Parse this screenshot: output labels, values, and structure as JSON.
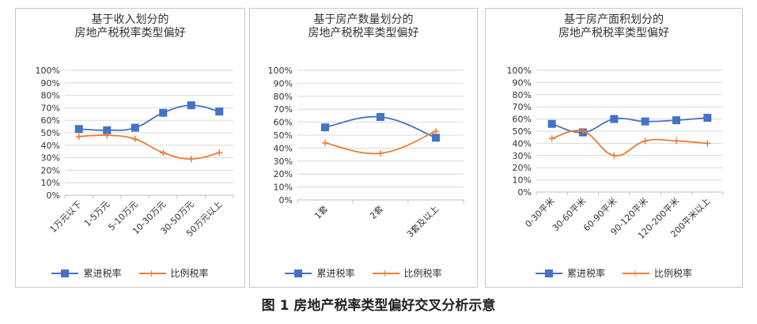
{
  "caption": "图 1    房地产税率类型偏好交叉分析示意",
  "colors": {
    "series1": "#4472c4",
    "series2": "#ed7d31",
    "grid": "#d9d9d9",
    "axis": "#bfbfbf"
  },
  "chart_data": [
    {
      "type": "line",
      "title_lines": [
        "基于收入划分的",
        "房地产税税率类型偏好"
      ],
      "categories": [
        "1万元以下",
        "1-5万元",
        "5-10万元",
        "10-30万元",
        "30-50万元",
        "50万元以上"
      ],
      "ylim": [
        0,
        100
      ],
      "yticks": [
        "0%",
        "10%",
        "20%",
        "30%",
        "40%",
        "50%",
        "60%",
        "70%",
        "80%",
        "90%",
        "100%"
      ],
      "series": [
        {
          "name": "累进税率",
          "values": [
            53,
            52,
            54,
            66,
            72,
            67
          ],
          "marker": "square"
        },
        {
          "name": "比例税率",
          "values": [
            47,
            48,
            45,
            34,
            29,
            34
          ],
          "marker": "plus"
        }
      ],
      "legend": "bottom",
      "grid": true
    },
    {
      "type": "line",
      "title_lines": [
        "基于房产数量划分的",
        "房地产税税率类型偏好"
      ],
      "categories": [
        "1套",
        "2套",
        "3套及以上"
      ],
      "ylim": [
        0,
        100
      ],
      "yticks": [
        "0%",
        "10%",
        "20%",
        "30%",
        "40%",
        "50%",
        "60%",
        "70%",
        "80%",
        "90%",
        "100%"
      ],
      "series": [
        {
          "name": "累进税率",
          "values": [
            56,
            64,
            48
          ],
          "marker": "square"
        },
        {
          "name": "比例税率",
          "values": [
            44,
            36,
            53
          ],
          "marker": "plus"
        }
      ],
      "legend": "bottom",
      "grid": true
    },
    {
      "type": "line",
      "title_lines": [
        "基于房产面积划分的",
        "房地产税税率类型偏好"
      ],
      "categories": [
        "0-30平米",
        "30-60平米",
        "60-90平米",
        "90-120平米",
        "120-200平米",
        "200平米以上"
      ],
      "ylim": [
        0,
        100
      ],
      "yticks": [
        "0%",
        "10%",
        "20%",
        "30%",
        "40%",
        "50%",
        "60%",
        "70%",
        "80%",
        "90%",
        "100%"
      ],
      "series": [
        {
          "name": "累进税率",
          "values": [
            56,
            49,
            60,
            58,
            59,
            61
          ],
          "marker": "square"
        },
        {
          "name": "比例税率",
          "values": [
            44,
            50,
            30,
            42,
            42,
            40
          ],
          "marker": "plus"
        }
      ],
      "legend": "bottom",
      "grid": true
    }
  ]
}
